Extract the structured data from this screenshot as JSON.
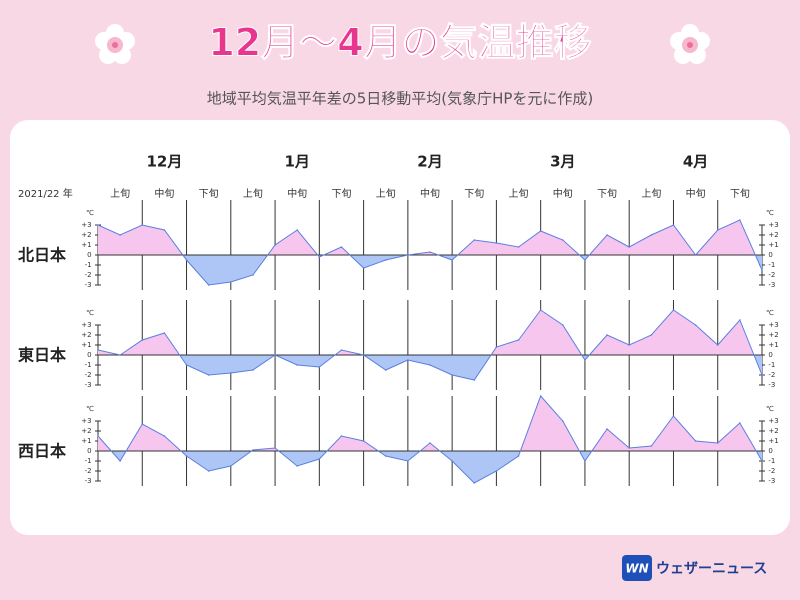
{
  "title": "12月〜4月の気温推移",
  "subtitle": "地域平均気温平年差の5日移動平均(気象庁HPを元に作成)",
  "logo": {
    "mark": "WN",
    "brand": "ウェザーニュース"
  },
  "chart_data": {
    "type": "line",
    "year_label": "2021/22 年",
    "months": [
      "12月",
      "1月",
      "2月",
      "3月",
      "4月"
    ],
    "periods": [
      "上旬",
      "中旬",
      "下旬",
      "上旬",
      "中旬",
      "下旬",
      "上旬",
      "中旬",
      "下旬",
      "上旬",
      "中旬",
      "下旬",
      "上旬",
      "中旬",
      "下旬"
    ],
    "unit": "℃",
    "ylim": [
      -3.5,
      5.5
    ],
    "yticks": [
      {
        "value": 3,
        "label": "+3"
      },
      {
        "value": 2,
        "label": "+2"
      },
      {
        "value": 1,
        "label": "+1"
      },
      0,
      -1,
      -2,
      -3
    ],
    "colors": {
      "positive": "#f7c6ee",
      "negative": "#adc6f5",
      "line": "#5a7fe0"
    },
    "series": [
      {
        "name": "北日本",
        "values": [
          3,
          2,
          3,
          2.5,
          -0.5,
          -3,
          -2.7,
          -2,
          1,
          2.5,
          -0.2,
          0.8,
          -1.3,
          -0.5,
          0,
          0.3,
          -0.5,
          1.5,
          1.2,
          0.8,
          2.4,
          1.5,
          -0.5,
          2,
          0.8,
          2,
          3,
          0,
          2.5,
          3.5,
          -1.5
        ]
      },
      {
        "name": "東日本",
        "values": [
          0.5,
          0,
          1.5,
          2.2,
          -1,
          -2,
          -1.8,
          -1.5,
          0,
          -1,
          -1.2,
          0.5,
          0,
          -1.5,
          -0.5,
          -1,
          -2,
          -2.5,
          0.8,
          1.5,
          4.5,
          3,
          -0.5,
          2,
          1,
          2,
          4.5,
          3,
          1,
          3.5,
          -2
        ]
      },
      {
        "name": "西日本",
        "values": [
          1.5,
          -1,
          2.7,
          1.5,
          -0.5,
          -2,
          -1.5,
          0.1,
          0.3,
          -1.5,
          -0.8,
          1.5,
          1,
          -0.5,
          -1,
          0.8,
          -1,
          -3.2,
          -2,
          -0.5,
          5.5,
          3,
          -1,
          2.2,
          0.3,
          0.5,
          3.5,
          1,
          0.8,
          2.8,
          -1
        ]
      }
    ]
  }
}
